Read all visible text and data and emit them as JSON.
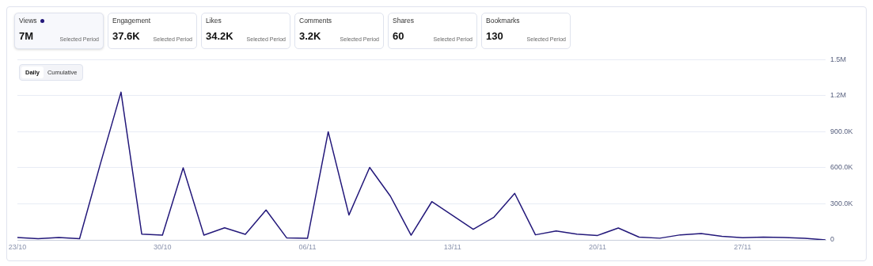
{
  "chart_data": [
    {
      "type": "other",
      "categories": [
        "Views",
        "Engagement",
        "Likes",
        "Comments",
        "Shares",
        "Bookmarks"
      ],
      "value_labels": [
        "7M",
        "37.6K",
        "34.2K",
        "3.2K",
        "60",
        "130"
      ],
      "annotations": [
        "Selected Period",
        "Selected Period",
        "Selected Period",
        "Selected Period",
        "Selected Period",
        "Selected Period"
      ]
    },
    {
      "type": "line",
      "categories": [
        "23/10",
        null,
        null,
        null,
        null,
        null,
        null,
        "30/10",
        null,
        null,
        null,
        null,
        null,
        null,
        "06/11",
        null,
        null,
        null,
        null,
        null,
        null,
        "13/11",
        null,
        null,
        null,
        null,
        null,
        null,
        "20/11",
        null,
        null,
        null,
        null,
        null,
        null,
        "27/11",
        null,
        null,
        null,
        null
      ],
      "series": [
        {
          "color": "#23187a",
          "values": [
            20000,
            10000,
            20000,
            10000,
            630000,
            1230000,
            48000,
            39000,
            600000,
            40000,
            101000,
            46000,
            249000,
            16000,
            13000,
            900000,
            207000,
            603000,
            364000,
            39000,
            318000,
            203000,
            88000,
            189000,
            387000,
            42000,
            74000,
            48000,
            37000,
            99000,
            23000,
            14000,
            42000,
            53000,
            30000,
            18000,
            23000,
            19000,
            13000,
            0
          ]
        }
      ],
      "ylim": [
        0,
        1500000
      ],
      "yticks": [
        0,
        {
          "value": 300000,
          "label": "300.0K"
        },
        {
          "value": 600000,
          "label": "600.0K"
        },
        {
          "value": 900000,
          "label": "900.0K"
        },
        {
          "value": 1200000,
          "label": "1.2M"
        },
        {
          "value": 1500000,
          "label": "1.5M"
        }
      ],
      "grid": "y",
      "legend": false,
      "marker": "none",
      "line_style": "solid",
      "annotations": [
        "Daily",
        "Cumulative"
      ]
    }
  ]
}
